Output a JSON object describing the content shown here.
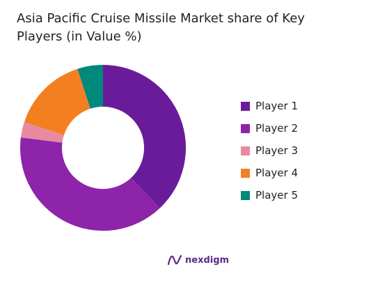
{
  "chart_data": {
    "type": "pie",
    "title": "Asia Pacific Cruise Missile Market share of Key Players (in Value %)",
    "donut": true,
    "legend_position": "right",
    "categories": [
      "Player 1",
      "Player 2",
      "Player 3",
      "Player 4",
      "Player 5"
    ],
    "values": [
      38,
      39,
      3,
      15,
      5
    ],
    "colors": [
      "#6a1b9a",
      "#8e24aa",
      "#e88aa0",
      "#f47f20",
      "#00897b"
    ]
  },
  "brand": {
    "name": "nexdigm",
    "icon": "nexdigm-logo-icon"
  }
}
